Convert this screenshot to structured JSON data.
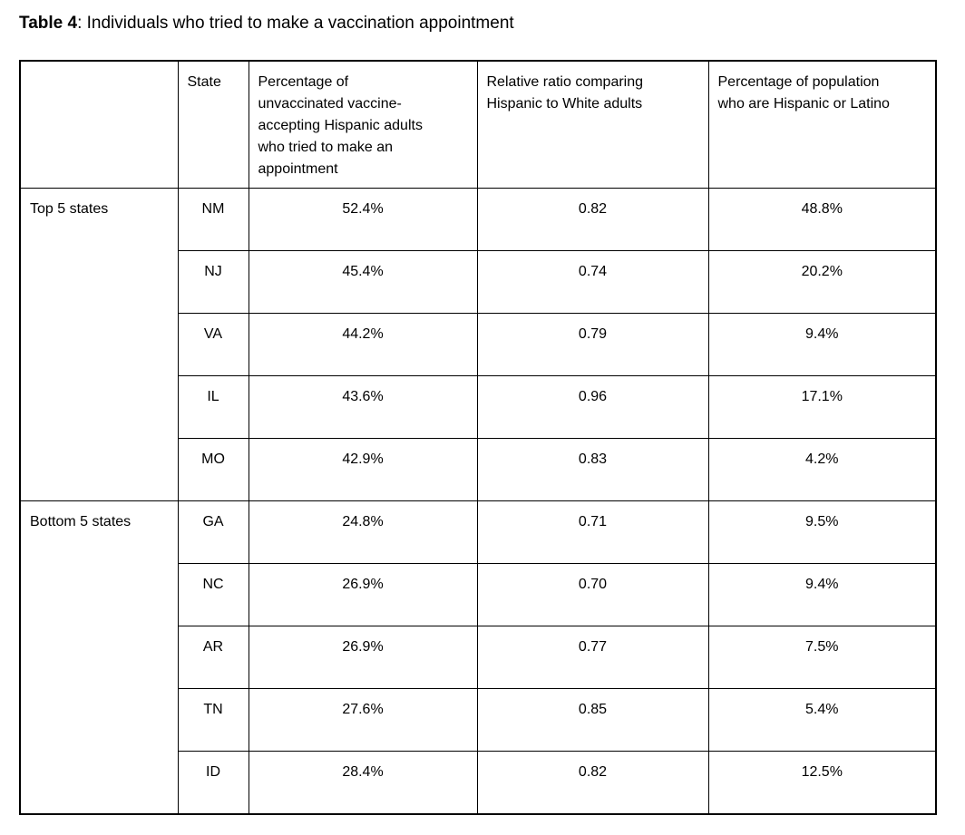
{
  "page": {
    "title_bold": "Table 4",
    "title_rest": ": Individuals who tried to make a vaccination appointment"
  },
  "table": {
    "columns": {
      "group": "",
      "state": "State",
      "percentage": "Percentage of\nunvaccinated vaccine-\naccepting Hispanic adults\nwho tried to make an\nappointment",
      "ratio": "Relative ratio comparing\nHispanic to White adults",
      "population": "Percentage of population\nwho are Hispanic or Latino"
    },
    "groups": [
      {
        "label": "Top 5 states",
        "rows": [
          {
            "state": "NM",
            "percentage": "52.4%",
            "ratio": "0.82",
            "population": "48.8%"
          },
          {
            "state": "NJ",
            "percentage": "45.4%",
            "ratio": "0.74",
            "population": "20.2%"
          },
          {
            "state": "VA",
            "percentage": "44.2%",
            "ratio": "0.79",
            "population": "9.4%"
          },
          {
            "state": "IL",
            "percentage": "43.6%",
            "ratio": "0.96",
            "population": "17.1%"
          },
          {
            "state": "MO",
            "percentage": "42.9%",
            "ratio": "0.83",
            "population": "4.2%"
          }
        ]
      },
      {
        "label": "Bottom 5 states",
        "rows": [
          {
            "state": "GA",
            "percentage": "24.8%",
            "ratio": "0.71",
            "population": "9.5%"
          },
          {
            "state": "NC",
            "percentage": "26.9%",
            "ratio": "0.70",
            "population": "9.4%"
          },
          {
            "state": "AR",
            "percentage": "26.9%",
            "ratio": "0.77",
            "population": "7.5%"
          },
          {
            "state": "TN",
            "percentage": "27.6%",
            "ratio": "0.85",
            "population": "5.4%"
          },
          {
            "state": "ID",
            "percentage": "28.4%",
            "ratio": "0.82",
            "population": "12.5%"
          }
        ]
      }
    ]
  },
  "colors": {
    "background": "#ffffff",
    "text": "#000000",
    "border": "#000000"
  }
}
